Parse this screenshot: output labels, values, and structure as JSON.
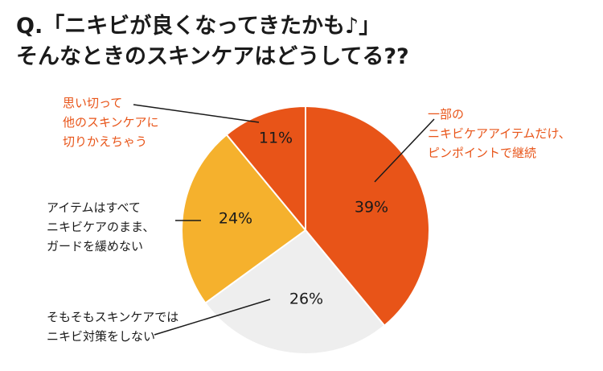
{
  "title_lines": [
    "Q.「ニキビが良くなってきたかも♪」",
    "そんなときのスキンケアはどうしてる??"
  ],
  "colors": {
    "slice_1": "#e85418",
    "slice_2": "#eeeeee",
    "slice_3": "#f5b12d",
    "slice_4": "#e85418",
    "label_accent": "#e85418",
    "label_dark": "#1a1a1a"
  },
  "chart_data": {
    "type": "pie",
    "title": "",
    "start_angle_deg": 0,
    "direction": "clockwise",
    "slices": [
      {
        "label_lines": [
          "一部の",
          "ニキビケアアイテムだけ、",
          "ピンポイントで継続"
        ],
        "value": 39,
        "value_label": "39%"
      },
      {
        "label_lines": [
          "そもそもスキンケアでは",
          "ニキビ対策をしない"
        ],
        "value": 26,
        "value_label": "26%"
      },
      {
        "label_lines": [
          "アイテムはすべて",
          "ニキビケアのまま、",
          "ガードを緩めない"
        ],
        "value": 24,
        "value_label": "24%"
      },
      {
        "label_lines": [
          "思い切って",
          "他のスキンケアに",
          "切りかえちゃう"
        ],
        "value": 11,
        "value_label": "11%"
      }
    ]
  }
}
